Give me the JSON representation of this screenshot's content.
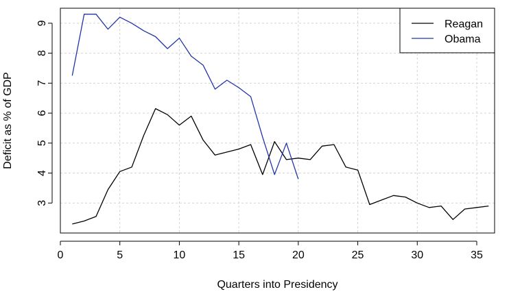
{
  "chart_data": {
    "type": "line",
    "title": "",
    "xlabel": "Quarters into Presidency",
    "ylabel": "Deficit as % of GDP",
    "xlim": [
      0,
      36.5
    ],
    "ylim": [
      2,
      9.5
    ],
    "x_ticks": [
      0,
      5,
      10,
      15,
      20,
      25,
      30,
      35
    ],
    "y_ticks": [
      3,
      4,
      5,
      6,
      7,
      8,
      9
    ],
    "grid": true,
    "legend": "top-right",
    "series": [
      {
        "name": "Reagan",
        "color": "#000000",
        "x": [
          1,
          2,
          3,
          4,
          5,
          6,
          7,
          8,
          9,
          10,
          11,
          12,
          13,
          14,
          15,
          16,
          17,
          18,
          19,
          20,
          21,
          22,
          23,
          24,
          25,
          26,
          27,
          28,
          29,
          30,
          31,
          32,
          33,
          34,
          35,
          36
        ],
        "y": [
          2.3,
          2.4,
          2.55,
          3.45,
          4.05,
          4.2,
          5.25,
          6.15,
          5.95,
          5.6,
          5.9,
          5.1,
          4.6,
          4.7,
          4.8,
          4.95,
          3.95,
          5.05,
          4.45,
          4.5,
          4.45,
          4.9,
          4.95,
          4.2,
          4.1,
          2.95,
          3.1,
          3.25,
          3.2,
          3.0,
          2.85,
          2.9,
          2.45,
          2.8,
          2.85,
          2.9
        ]
      },
      {
        "name": "Obama",
        "color": "#2233aa",
        "x": [
          1,
          2,
          3,
          4,
          5,
          6,
          7,
          8,
          9,
          10,
          11,
          12,
          13,
          14,
          15,
          16,
          17,
          18,
          19,
          20
        ],
        "y": [
          7.25,
          9.3,
          9.3,
          8.8,
          9.2,
          9.0,
          8.75,
          8.55,
          8.15,
          8.5,
          7.9,
          7.6,
          6.8,
          7.1,
          6.85,
          6.55,
          5.2,
          3.95,
          5.0,
          3.8
        ]
      }
    ]
  }
}
